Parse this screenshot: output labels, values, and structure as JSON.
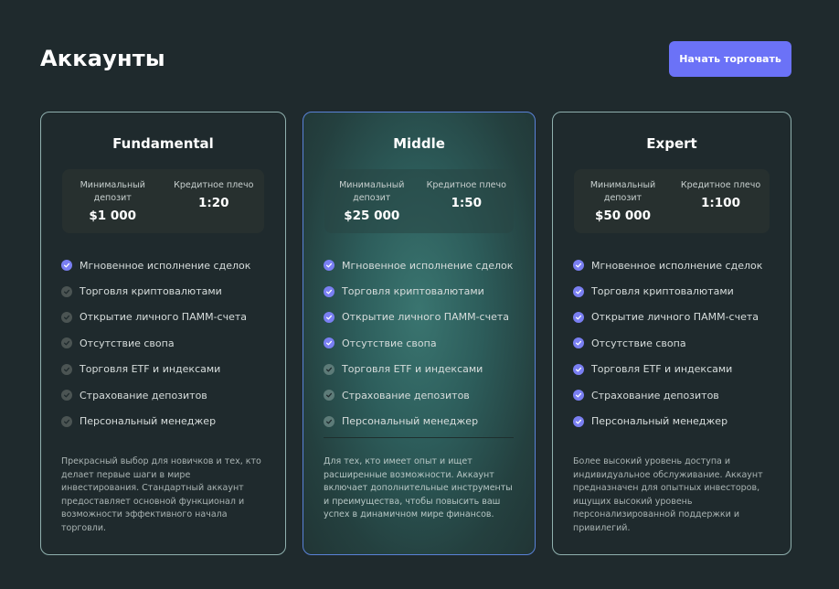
{
  "header": {
    "title": "Аккаунты",
    "cta_label": "Начать торговать"
  },
  "colors": {
    "background": "#1f2a2d",
    "accent": "#6b72f7",
    "check_active": "#7a7ff2",
    "check_inactive": "#4b5453"
  },
  "cards": [
    {
      "title": "Fundamental",
      "stats": [
        {
          "label": "Минимальный депозит",
          "value": "$1 000"
        },
        {
          "label": "Кредитное плечо",
          "value": "1:20"
        }
      ],
      "features": [
        {
          "text": "Мгновенное исполнение сделок",
          "active": true
        },
        {
          "text": "Торговля криптовалютами",
          "active": false
        },
        {
          "text": "Открытие личного ПАММ-счета",
          "active": false
        },
        {
          "text": "Отсутствие свопа",
          "active": false
        },
        {
          "text": "Торговля ETF и индексами",
          "active": false
        },
        {
          "text": "Страхование депозитов",
          "active": false
        },
        {
          "text": "Персональный менеджер",
          "active": false
        }
      ],
      "description": "Прекрасный выбор для новичков и тех, кто делает первые шаги в мире инвестирования. Стандартный аккаунт предоставляет основной функционал и возможности эффективного начала торговли."
    },
    {
      "title": "Middle",
      "stats": [
        {
          "label": "Минимальный депозит",
          "value": "$25 000"
        },
        {
          "label": "Кредитное плечо",
          "value": "1:50"
        }
      ],
      "features": [
        {
          "text": "Мгновенное исполнение сделок",
          "active": true
        },
        {
          "text": "Торговля криптовалютами",
          "active": true
        },
        {
          "text": "Открытие личного ПАММ-счета",
          "active": true
        },
        {
          "text": "Отсутствие свопа",
          "active": true
        },
        {
          "text": "Торговля ETF и индексами",
          "active": false
        },
        {
          "text": "Страхование депозитов",
          "active": false
        },
        {
          "text": "Персональный менеджер",
          "active": false
        }
      ],
      "description": "Для тех, кто имеет опыт и ищет расширенные возможности. Аккаунт включает дополнительные инструменты и преимущества, чтобы повысить ваш успех в динамичном мире финансов."
    },
    {
      "title": "Expert",
      "stats": [
        {
          "label": "Минимальный депозит",
          "value": "$50 000"
        },
        {
          "label": "Кредитное плечо",
          "value": "1:100"
        }
      ],
      "features": [
        {
          "text": "Мгновенное исполнение сделок",
          "active": true
        },
        {
          "text": "Торговля криптовалютами",
          "active": true
        },
        {
          "text": "Открытие личного ПАММ-счета",
          "active": true
        },
        {
          "text": "Отсутствие свопа",
          "active": true
        },
        {
          "text": "Торговля ETF и индексами",
          "active": true
        },
        {
          "text": "Страхование депозитов",
          "active": true
        },
        {
          "text": "Персональный менеджер",
          "active": true
        }
      ],
      "description": "Более высокий уровень доступа и индивидуальное обслуживание. Аккаунт предназначен для опытных инвесторов, ищущих высокий уровень персонализированной поддержки и привилегий."
    }
  ]
}
